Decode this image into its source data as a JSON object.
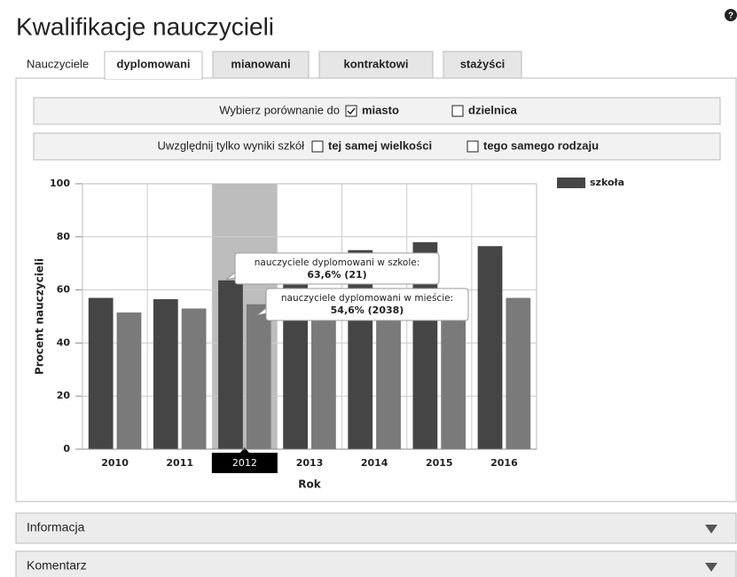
{
  "header": {
    "title": "Kwalifikacje nauczycieli",
    "help": "?"
  },
  "tabs": {
    "label": "Nauczyciele",
    "items": [
      "dyplomowani",
      "mianowani",
      "kontraktowi",
      "stażyści"
    ],
    "active": 0
  },
  "filters": [
    {
      "label": "Wybierz porównanie do",
      "options": [
        {
          "text": "miasto",
          "checked": true
        },
        {
          "text": "dzielnica",
          "checked": false
        }
      ]
    },
    {
      "label": "Uwzględnij tylko wyniki szkół",
      "options": [
        {
          "text": "tej samej wielkości",
          "checked": false
        },
        {
          "text": "tego samego rodzaju",
          "checked": false
        }
      ]
    }
  ],
  "chart_data": {
    "type": "bar",
    "x_label": "Rok",
    "y_label": "Procent nauczycieli",
    "categories": [
      "2010",
      "2011",
      "2012",
      "2013",
      "2014",
      "2015",
      "2016"
    ],
    "series": [
      {
        "name": "szkoła",
        "color": "#454545",
        "values": [
          57,
          56.5,
          63.6,
          62,
          75,
          78,
          76.5
        ]
      },
      {
        "color": "#7a7a7a",
        "values": [
          51.5,
          53,
          54.6,
          54,
          56,
          56,
          57
        ]
      }
    ],
    "ylim": [
      0,
      100
    ],
    "yticks": [
      0,
      20,
      40,
      60,
      80,
      100
    ],
    "grid": true,
    "legend": "right",
    "highlight": 2,
    "tooltips": [
      {
        "title": "nauczyciele dyplomowani w szkole:",
        "text": "63,6% (21)"
      },
      {
        "title": "nauczyciele dyplomowani w mieście:",
        "text": "54,6% (2038)"
      }
    ]
  },
  "panels": [
    "Informacja",
    "Komentarz"
  ]
}
